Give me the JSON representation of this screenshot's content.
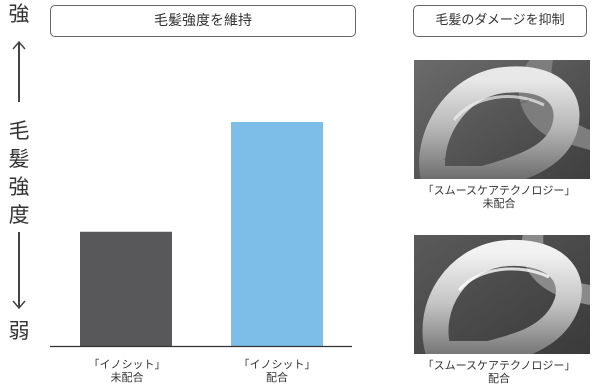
{
  "y_axis": {
    "top_label": "強",
    "middle_label_chars": [
      "毛",
      "髪",
      "強",
      "度"
    ],
    "bottom_label": "弱"
  },
  "chart_data": {
    "type": "bar",
    "title": "毛髪強度を維持",
    "categories": [
      {
        "line1": "「イノシット」",
        "line2": "未配合"
      },
      {
        "line1": "「イノシット」",
        "line2": "配合"
      }
    ],
    "values": [
      0.51,
      1.0
    ],
    "value_scale": "relative (no numeric axis printed)",
    "colors": [
      "#58585a",
      "#7cbee8"
    ],
    "axis_color": "#333333"
  },
  "comparison": {
    "title": "毛髪のダメージを抑制",
    "images": [
      {
        "icon": "hair-sem-photo",
        "caption_line1": "「スムースケアテクノロジー」",
        "caption_line2": "未配合"
      },
      {
        "icon": "hair-sem-photo",
        "caption_line1": "「スムースケアテクノロジー」",
        "caption_line2": "配合"
      }
    ]
  }
}
